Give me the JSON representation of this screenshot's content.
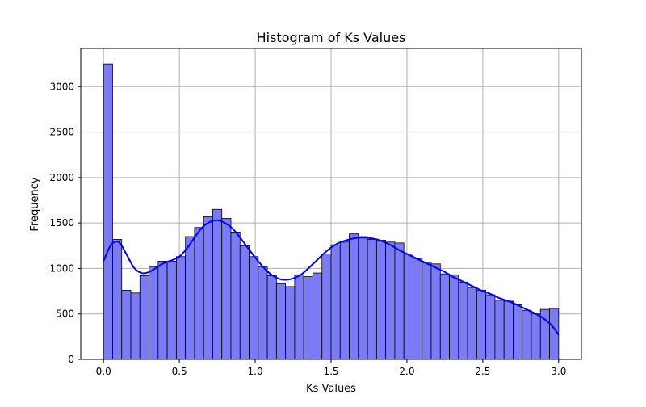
{
  "chart_data": {
    "type": "bar",
    "title": "Histogram of Ks Values",
    "xlabel": "Ks Values",
    "ylabel": "Frequency",
    "xlim": [
      -0.15,
      3.15
    ],
    "ylim": [
      0,
      3420
    ],
    "xticks": [
      0.0,
      0.5,
      1.0,
      1.5,
      2.0,
      2.5,
      3.0
    ],
    "xtick_labels": [
      "0.0",
      "0.5",
      "1.0",
      "1.5",
      "2.0",
      "2.5",
      "3.0"
    ],
    "yticks": [
      0,
      500,
      1000,
      1500,
      2000,
      2500,
      3000
    ],
    "ytick_labels": [
      "0",
      "500",
      "1000",
      "1500",
      "2000",
      "2500",
      "3000"
    ],
    "grid": true,
    "bin_start": 0.0,
    "bin_width": 0.06,
    "counts": [
      3250,
      1320,
      760,
      730,
      920,
      1020,
      1080,
      1080,
      1130,
      1350,
      1450,
      1570,
      1650,
      1550,
      1400,
      1250,
      1130,
      1020,
      920,
      830,
      800,
      930,
      910,
      950,
      1160,
      1260,
      1290,
      1380,
      1350,
      1320,
      1310,
      1290,
      1280,
      1160,
      1110,
      1060,
      1050,
      940,
      930,
      850,
      790,
      760,
      710,
      650,
      640,
      600,
      540,
      500,
      550,
      560
    ],
    "kde": {
      "x": [
        0.0,
        0.05,
        0.1,
        0.15,
        0.2,
        0.25,
        0.3,
        0.35,
        0.4,
        0.45,
        0.5,
        0.55,
        0.6,
        0.65,
        0.7,
        0.75,
        0.8,
        0.85,
        0.9,
        0.95,
        1.0,
        1.05,
        1.1,
        1.15,
        1.2,
        1.25,
        1.3,
        1.35,
        1.4,
        1.45,
        1.5,
        1.55,
        1.6,
        1.65,
        1.7,
        1.75,
        1.8,
        1.85,
        1.9,
        1.95,
        2.0,
        2.05,
        2.1,
        2.15,
        2.2,
        2.25,
        2.3,
        2.35,
        2.4,
        2.45,
        2.5,
        2.55,
        2.6,
        2.65,
        2.7,
        2.75,
        2.8,
        2.85,
        2.9,
        2.95,
        3.0
      ],
      "y": [
        1080,
        1260,
        1290,
        1160,
        1010,
        950,
        960,
        1010,
        1060,
        1090,
        1130,
        1220,
        1340,
        1450,
        1510,
        1530,
        1500,
        1440,
        1340,
        1230,
        1120,
        1020,
        940,
        890,
        875,
        890,
        930,
        1000,
        1080,
        1160,
        1230,
        1280,
        1310,
        1330,
        1340,
        1335,
        1320,
        1290,
        1250,
        1200,
        1160,
        1120,
        1080,
        1040,
        1000,
        960,
        910,
        870,
        830,
        790,
        750,
        720,
        680,
        650,
        620,
        580,
        540,
        500,
        450,
        380,
        270
      ]
    },
    "bar_color": "#7b7bf5",
    "bar_edge_color": "#000000",
    "kde_color": "#0000ff",
    "grid_color": "#b0b0b0"
  }
}
